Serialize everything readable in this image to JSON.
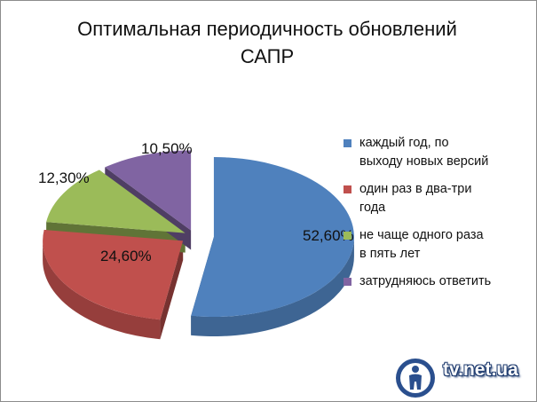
{
  "chart_data": {
    "type": "pie",
    "title": [
      "Оптимальная периодичность обновлений",
      "САПР"
    ],
    "categories": [
      [
        "каждый год, по",
        "выходу новых версий"
      ],
      [
        "один раз в два-три",
        "года"
      ],
      [
        "не чаще одного раза",
        "в пять лет"
      ],
      [
        "затрудняюсь ответить"
      ]
    ],
    "values": [
      52.6,
      24.6,
      12.3,
      10.5
    ],
    "data_labels": [
      "52,60%",
      "24,60%",
      "12,30%",
      "10,50%"
    ],
    "colors": [
      "#4f81bd",
      "#c0504d",
      "#9bbb59",
      "#8064a2"
    ],
    "style": "3d-exploded-pie",
    "legend_position": "right"
  },
  "watermark": {
    "text": "tv.net.ua",
    "icon": "info-person-icon"
  }
}
